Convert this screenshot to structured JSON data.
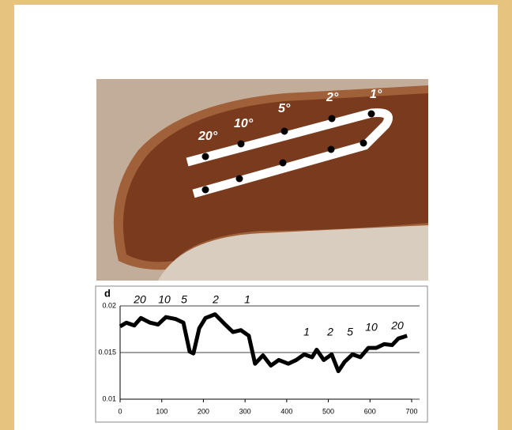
{
  "photo_labels": [
    "20°",
    "10°",
    "5°",
    "2°",
    "1°"
  ],
  "chart_data": {
    "type": "line",
    "ylabel": "d",
    "x": [
      0,
      15,
      34,
      50,
      72,
      91,
      110,
      133,
      152,
      167,
      176,
      190,
      205,
      228,
      250,
      271,
      290,
      309,
      324,
      343,
      362,
      381,
      404,
      423,
      442,
      461,
      472,
      489,
      508,
      524,
      539,
      558,
      577,
      596,
      615,
      634,
      653,
      668,
      689
    ],
    "series": [
      {
        "color": "#000000",
        "values": [
          0.0178,
          0.0182,
          0.0179,
          0.0187,
          0.0182,
          0.018,
          0.0188,
          0.0186,
          0.0182,
          0.0151,
          0.0149,
          0.0176,
          0.0187,
          0.0191,
          0.0181,
          0.0172,
          0.0174,
          0.0168,
          0.0138,
          0.0147,
          0.0136,
          0.0142,
          0.0138,
          0.0142,
          0.0148,
          0.0145,
          0.0153,
          0.0142,
          0.0148,
          0.013,
          0.014,
          0.0148,
          0.0145,
          0.0155,
          0.0155,
          0.0159,
          0.0158,
          0.0165,
          0.0168
        ]
      }
    ],
    "xlim": [
      0,
      700
    ],
    "xticks": [
      0,
      100,
      200,
      300,
      400,
      500,
      600,
      700
    ],
    "ylim": [
      0.01,
      0.02
    ],
    "yticks": [
      0.01,
      0.015,
      0.02
    ],
    "annotations_top": [
      "20",
      "10",
      "5",
      "2",
      "1"
    ],
    "annotations_bottom": [
      "1",
      "2",
      "5",
      "10",
      "20"
    ]
  }
}
